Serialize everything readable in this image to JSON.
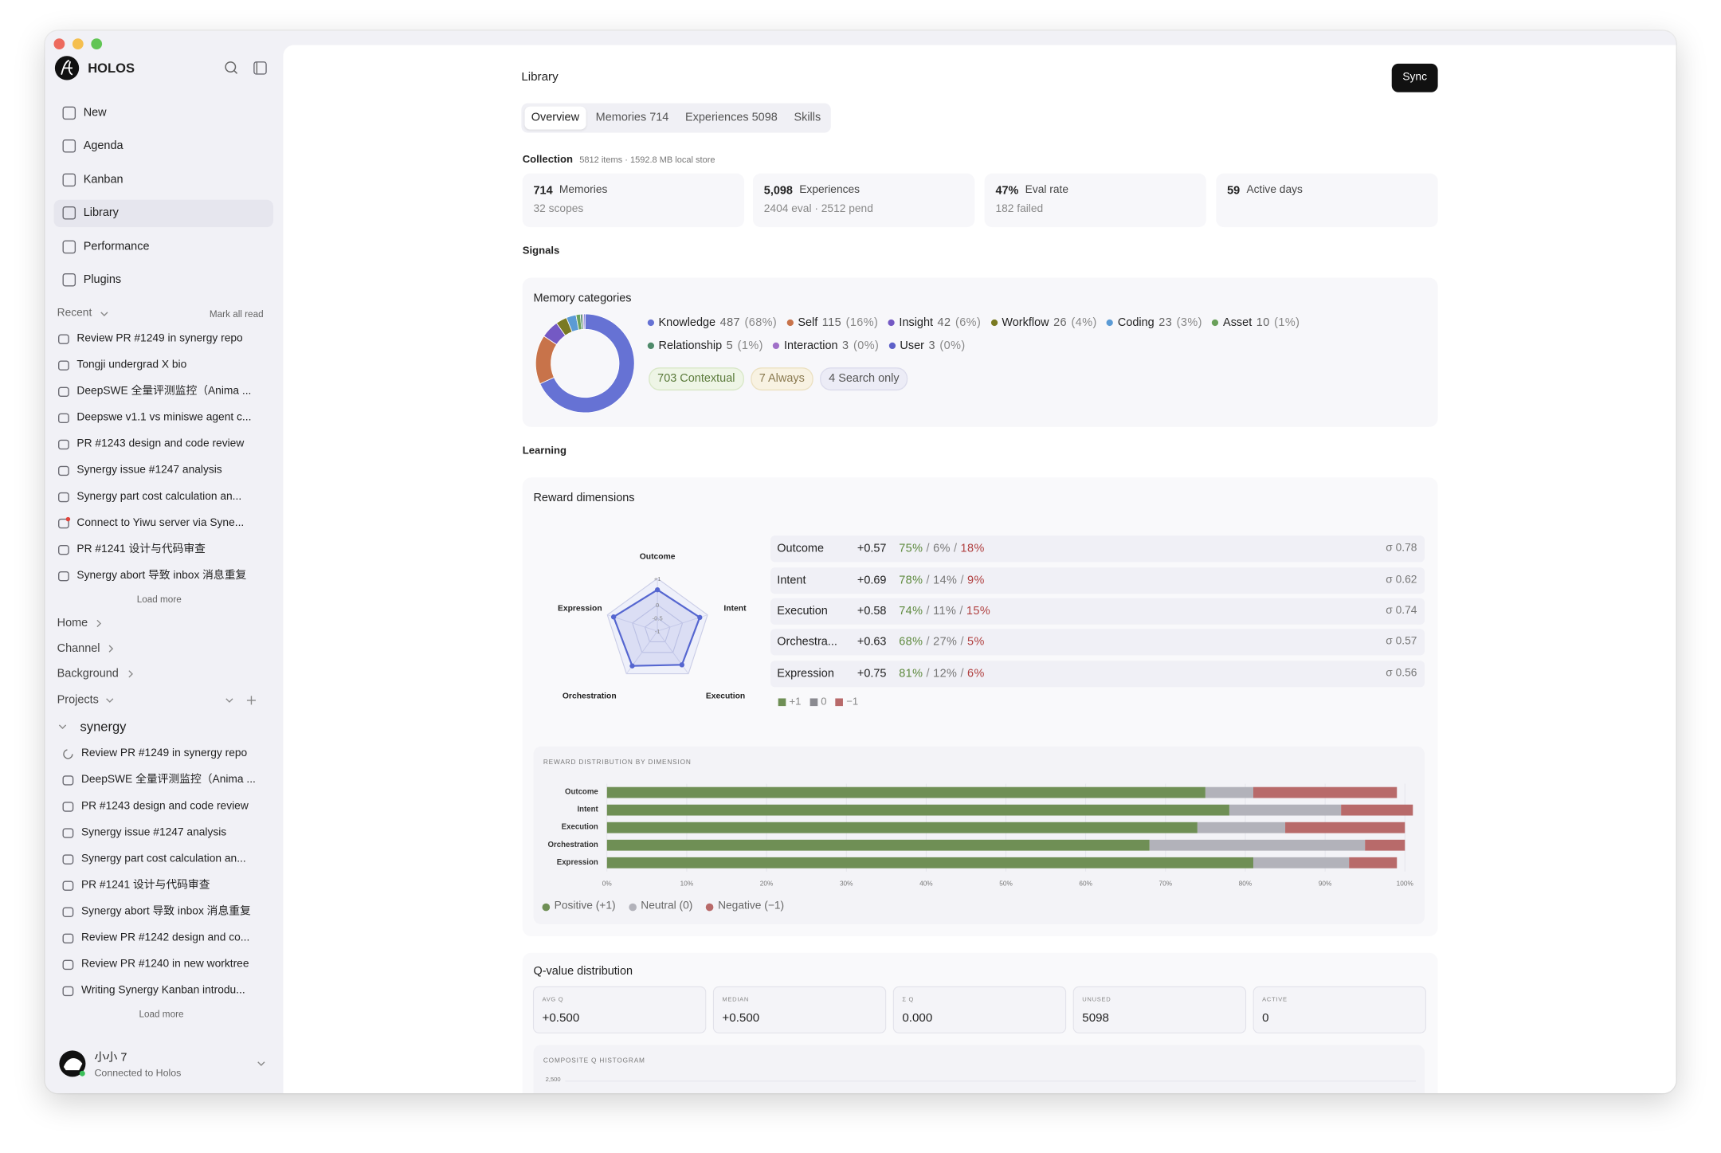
{
  "window": {
    "app_name": "HOLOS"
  },
  "sidebar": {
    "nav": [
      "New",
      "Agenda",
      "Kanban",
      "Library",
      "Performance",
      "Plugins"
    ],
    "recent": {
      "label": "Recent",
      "mark_all": "Mark all read",
      "items": [
        "Review PR #1249 in synergy repo",
        "Tongji undergrad X bio",
        "DeepSWE 全量评测监控（Anima ...",
        "Deepswe v1.1 vs miniswe agent c...",
        "PR #1243 design and code review",
        "Synergy issue #1247 analysis",
        "Synergy part cost calculation an...",
        "Connect to Yiwu server via Syne...",
        "PR #1241 设计与代码审查",
        "Synergy abort 导致 inbox 消息重复"
      ],
      "load_more": "Load more"
    },
    "sections": [
      "Home",
      "Channel",
      "Background",
      "Projects"
    ],
    "project": {
      "name": "synergy",
      "items": [
        "Review PR #1249 in synergy repo",
        "DeepSWE 全量评测监控（Anima ...",
        "PR #1243 design and code review",
        "Synergy issue #1247 analysis",
        "Synergy part cost calculation an...",
        "PR #1241 设计与代码审查",
        "Synergy abort 导致 inbox 消息重复",
        "Review PR #1242 design and co...",
        "Review PR #1240 in new worktree",
        "Writing Synergy Kanban introdu..."
      ],
      "load_more": "Load more"
    },
    "user": {
      "name": "小小 7",
      "status": "Connected to Holos"
    }
  },
  "main": {
    "title": "Library",
    "sync": "Sync",
    "tabs": [
      "Overview",
      "Memories 714",
      "Experiences 5098",
      "Skills"
    ],
    "collection": {
      "label": "Collection",
      "info": "5812 items · 1592.8 MB local store"
    },
    "stats": [
      {
        "value": "714",
        "label": "Memories",
        "sub": "32 scopes"
      },
      {
        "value": "5,098",
        "label": "Experiences",
        "sub": "2404 eval · 2512 pend"
      },
      {
        "value": "47%",
        "label": "Eval rate",
        "sub": "182 failed"
      },
      {
        "value": "59",
        "label": "Active days"
      }
    ],
    "signals": "Signals",
    "badges": [
      "703 Contextual",
      "7 Always",
      "4 Search only"
    ],
    "learning": "Learning",
    "reward_table": {
      "separator": "/",
      "rows": [
        {
          "name": "Outcome",
          "mean": "+0.57",
          "split": [
            "75%",
            "6%",
            "18%"
          ],
          "sigma": "σ 0.78"
        },
        {
          "name": "Intent",
          "mean": "+0.69",
          "split": [
            "78%",
            "14%",
            "9%"
          ],
          "sigma": "σ 0.62"
        },
        {
          "name": "Execution",
          "mean": "+0.58",
          "split": [
            "74%",
            "11%",
            "15%"
          ],
          "sigma": "σ 0.74"
        },
        {
          "name": "Orchestra...",
          "mean": "+0.63",
          "split": [
            "68%",
            "27%",
            "5%"
          ],
          "sigma": "σ 0.57"
        },
        {
          "name": "Expression",
          "mean": "+0.75",
          "split": [
            "81%",
            "12%",
            "6%"
          ],
          "sigma": "σ 0.56"
        }
      ],
      "legend": [
        {
          "label": "+1",
          "color": "#6f8f55"
        },
        {
          "label": "0",
          "color": "#8a8a90"
        },
        {
          "label": "−1",
          "color": "#b86a6a"
        }
      ]
    },
    "q_value": {
      "title": "Q-value distribution",
      "stats": [
        {
          "label": "AVG Q",
          "value": "+0.500"
        },
        {
          "label": "MEDIAN",
          "value": "+0.500"
        },
        {
          "label": "Σ Q",
          "value": "0.000"
        },
        {
          "label": "UNUSED",
          "value": "5098"
        },
        {
          "label": "ACTIVE",
          "value": "0"
        }
      ]
    }
  },
  "chart_data": [
    {
      "type": "pie",
      "donut": true,
      "title": "Memory categories",
      "categories": [
        "Knowledge",
        "Self",
        "Insight",
        "Workflow",
        "Coding",
        "Asset",
        "Relationship",
        "Interaction",
        "User"
      ],
      "values": [
        487,
        115,
        42,
        26,
        23,
        10,
        5,
        3,
        3
      ],
      "percent_labels": [
        "(68%)",
        "(16%)",
        "(6%)",
        "(4%)",
        "(3%)",
        "(1%)",
        "(1%)",
        "(0%)",
        "(0%)"
      ],
      "colors": [
        "#6672d4",
        "#c8734a",
        "#7459c4",
        "#7a7a22",
        "#5b9bd5",
        "#6aa05a",
        "#4f8a6a",
        "#a070c8",
        "#5d60c8"
      ]
    },
    {
      "type": "radar",
      "title": "Reward dimensions",
      "categories": [
        "Outcome",
        "Intent",
        "Execution",
        "Orchestration",
        "Expression"
      ],
      "values": [
        0.57,
        0.69,
        0.58,
        0.63,
        0.75
      ],
      "rlim": [
        -1,
        1
      ],
      "rticks": [
        {
          "value": 1,
          "label": "+1"
        },
        0,
        -0.5,
        -1
      ],
      "color": "#5566d0"
    },
    {
      "type": "stacked_bar",
      "orientation": "horizontal",
      "title": "REWARD DISTRIBUTION BY DIMENSION",
      "categories": [
        "Outcome",
        "Intent",
        "Execution",
        "Orchestration",
        "Expression"
      ],
      "series": [
        {
          "name": "Positive (+1)",
          "color": "#6f8f55",
          "values": [
            75,
            78,
            74,
            68,
            81
          ]
        },
        {
          "name": "Neutral (0)",
          "color": "#b2b2ba",
          "values": [
            6,
            14,
            11,
            27,
            12
          ]
        },
        {
          "name": "Negative (−1)",
          "color": "#b86a6a",
          "values": [
            18,
            9,
            15,
            5,
            6
          ]
        }
      ],
      "xlim": [
        0,
        100
      ],
      "xticks": [
        {
          "value": 0,
          "label": "0%"
        },
        {
          "value": 10,
          "label": "10%"
        },
        {
          "value": 20,
          "label": "20%"
        },
        {
          "value": 30,
          "label": "30%"
        },
        {
          "value": 40,
          "label": "40%"
        },
        {
          "value": 50,
          "label": "50%"
        },
        {
          "value": 60,
          "label": "60%"
        },
        {
          "value": 70,
          "label": "70%"
        },
        {
          "value": 80,
          "label": "80%"
        },
        {
          "value": 90,
          "label": "90%"
        },
        {
          "value": 100,
          "label": "100%"
        }
      ],
      "grid": true
    },
    {
      "type": "histogram",
      "title": "COMPOSITE Q HISTOGRAM",
      "ylim": [
        0,
        2500
      ],
      "yticks": [
        {
          "value": 2500,
          "label": "2,500"
        }
      ],
      "grid": true
    }
  ]
}
